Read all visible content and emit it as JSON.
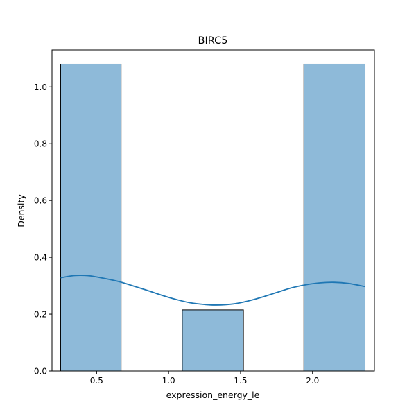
{
  "chart_data": {
    "type": "bar",
    "title": "BIRC5",
    "xlabel": "expression_energy_le",
    "ylabel": "Density",
    "xlim": [
      0.19,
      2.43
    ],
    "ylim": [
      0.0,
      1.13
    ],
    "xticks": [
      0.5,
      1.0,
      1.5,
      2.0
    ],
    "xtick_labels": [
      "0.5",
      "1.0",
      "1.5",
      "2.0"
    ],
    "yticks": [
      0.0,
      0.2,
      0.4,
      0.6,
      0.8,
      1.0
    ],
    "ytick_labels": [
      "0.0",
      "0.2",
      "0.4",
      "0.6",
      "0.8",
      "1.0"
    ],
    "grid": false,
    "legend": "none",
    "bins": [
      {
        "x0": 0.25,
        "x1": 0.67,
        "value": 1.08
      },
      {
        "x0": 0.67,
        "x1": 1.095,
        "value": 0.0
      },
      {
        "x0": 1.095,
        "x1": 1.52,
        "value": 0.215
      },
      {
        "x0": 1.52,
        "x1": 1.94,
        "value": 0.0
      },
      {
        "x0": 1.94,
        "x1": 2.365,
        "value": 1.08
      }
    ],
    "kde": {
      "x": [
        0.25,
        0.35,
        0.45,
        0.55,
        0.65,
        0.75,
        0.85,
        0.95,
        1.05,
        1.15,
        1.25,
        1.33,
        1.45,
        1.55,
        1.65,
        1.75,
        1.85,
        1.95,
        2.05,
        2.15,
        2.25,
        2.365
      ],
      "y": [
        0.328,
        0.336,
        0.335,
        0.326,
        0.315,
        0.3,
        0.284,
        0.267,
        0.252,
        0.24,
        0.234,
        0.232,
        0.236,
        0.246,
        0.26,
        0.276,
        0.292,
        0.303,
        0.31,
        0.312,
        0.308,
        0.297
      ]
    },
    "colors": {
      "bar_fill": "#8ebad9",
      "bar_edge": "#000000",
      "kde_line": "#1f77b4"
    }
  }
}
